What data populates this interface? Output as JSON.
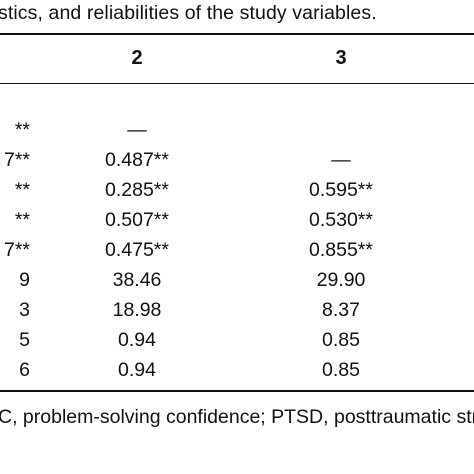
{
  "caption": "stics, and reliabilities of the study variables.",
  "table": {
    "headers": [
      "2",
      "3"
    ],
    "rows": [
      {
        "c1": "**",
        "c2": "—",
        "c3": ""
      },
      {
        "c1": "7**",
        "c2": "0.487**",
        "c3": "—"
      },
      {
        "c1": "**",
        "c2": "0.285**",
        "c3": "0.595**"
      },
      {
        "c1": "**",
        "c2": "0.507**",
        "c3": "0.530**"
      },
      {
        "c1": "7**",
        "c2": "0.475**",
        "c3": "0.855**"
      },
      {
        "c1": "9",
        "c2": "38.46",
        "c3": "29.90"
      },
      {
        "c1": "3",
        "c2": "18.98",
        "c3": "8.37"
      },
      {
        "c1": "5",
        "c2": "0.94",
        "c3": "0.85"
      },
      {
        "c1": "6",
        "c2": "0.94",
        "c3": "0.85"
      }
    ]
  },
  "footnote": "C, problem-solving confidence; PTSD, posttraumatic stre"
}
